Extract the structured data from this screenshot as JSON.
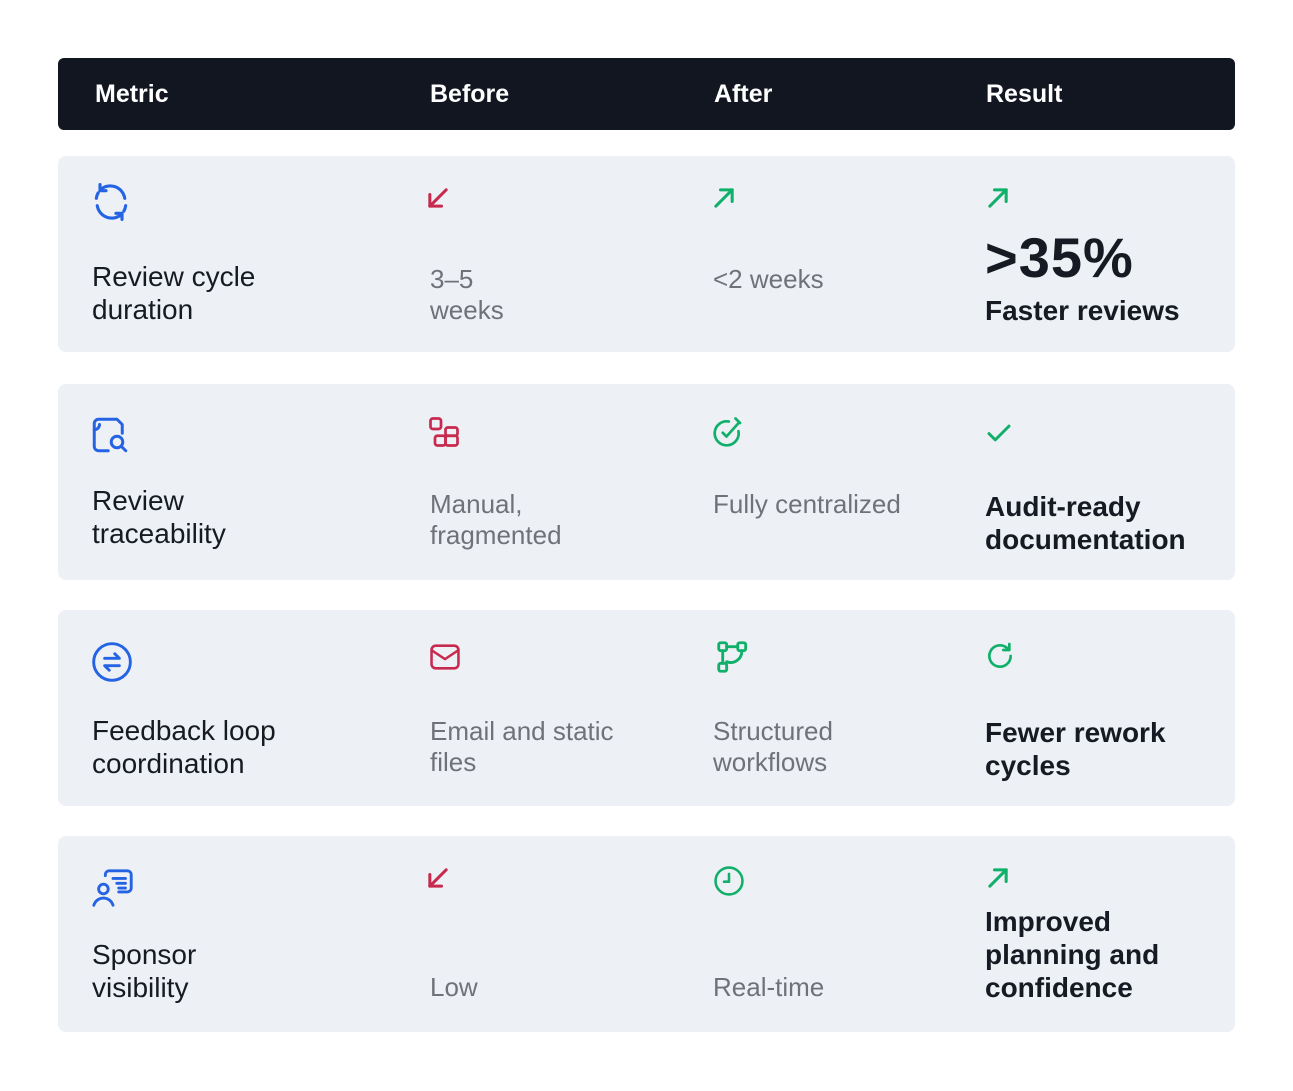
{
  "header": {
    "metric": "Metric",
    "before": "Before",
    "after": "After",
    "result": "Result"
  },
  "rows": [
    {
      "metric": "Review cycle duration",
      "metric_icon": "refresh-cycle-icon",
      "before": "3–5 weeks",
      "before_icon": "arrow-down-left-icon",
      "after": "<2 weeks",
      "after_icon": "arrow-up-right-icon",
      "result_icon": "arrow-up-right-icon",
      "result_highlight": ">35%",
      "result": "Faster reviews"
    },
    {
      "metric": "Review traceability",
      "metric_icon": "document-search-icon",
      "before": "Manual, fragmented",
      "before_icon": "fragmented-blocks-icon",
      "after": "Fully centralized",
      "after_icon": "link-check-icon",
      "result_icon": "checkmark-icon",
      "result": "Audit-ready documentation"
    },
    {
      "metric": "Feedback loop coordination",
      "metric_icon": "exchange-circle-icon",
      "before": "Email and static files",
      "before_icon": "envelope-icon",
      "after": "Structured workflows",
      "after_icon": "workflow-nodes-icon",
      "result_icon": "rotate-clockwise-icon",
      "result": "Fewer rework cycles"
    },
    {
      "metric": "Sponsor visibility",
      "metric_icon": "user-message-icon",
      "before": "Low",
      "before_icon": "arrow-down-left-icon",
      "after": "Real-time",
      "after_icon": "clock-icon",
      "result_icon": "arrow-up-right-icon",
      "result": "Improved planning and confidence"
    }
  ],
  "colors": {
    "header_bg": "#121620",
    "row_bg": "#edf0f5",
    "metric_icon": "#2463e3",
    "before_icon": "#c72a4e",
    "after_icon": "#10b06a",
    "text_dark": "#161a22",
    "text_muted": "#6f7379"
  }
}
